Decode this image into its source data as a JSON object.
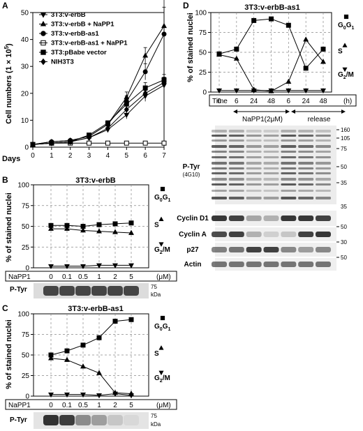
{
  "panels": {
    "A": {
      "letter": "A",
      "ylabel": "Cell numbers (1 × 10",
      "ylabel_sup": "5",
      "ylabel_end": ")",
      "xlabel": "Days",
      "legend": [
        {
          "label": "3T3:v-erbB",
          "marker": "tri-down",
          "fill": "#000000"
        },
        {
          "label": "3T3:v-erbB + NaPP1",
          "marker": "tri-up",
          "fill": "#000000"
        },
        {
          "label": "3T3:v-erbB-as1",
          "marker": "circle",
          "fill": "#000000"
        },
        {
          "label": "3T3:v-erbB-as1 + NaPP1",
          "marker": "square",
          "fill": "#ffffff"
        },
        {
          "label": "3T3:pBabe vector",
          "marker": "square",
          "fill": "#000000"
        },
        {
          "label": "NIH3T3",
          "marker": "diamond",
          "fill": "#000000"
        }
      ]
    },
    "B": {
      "letter": "B",
      "title": "3T3:v-erbB"
    },
    "C": {
      "letter": "C",
      "title": "3T3:v-erbB-as1"
    },
    "D": {
      "letter": "D",
      "title": "3T3:v-erbB-as1",
      "time_label": "Time",
      "time_unit": "(h)",
      "treat1": "NaPP1(2μM)",
      "treat2": "release",
      "ptyr": "P-Tyr",
      "ptyr_sub": "(4G10)",
      "blots": [
        "Cyclin D1",
        "Cyclin A",
        "p27",
        "Actin"
      ],
      "mw_ptyr": [
        "160",
        "105",
        "75",
        "50",
        "35"
      ],
      "mw_blots": [
        "35",
        "50",
        "30",
        "50"
      ]
    },
    "common": {
      "ylabel": "% of stained nuclei",
      "dose_label": "NaPP1",
      "dose_unit": "(μM)",
      "ptyr": "P-Tyr",
      "kda_75": "75",
      "kda": "kDa",
      "phase_g0g1": "G0G1",
      "phase_s": "S",
      "phase_g2m": "G2/M"
    }
  },
  "chart_data": [
    {
      "panel": "A",
      "type": "line",
      "xlabel": "Days",
      "ylabel": "Cell numbers (1 × 10^5)",
      "x": [
        0,
        1,
        2,
        3,
        4,
        5,
        6,
        7
      ],
      "xlim": [
        0,
        7
      ],
      "ylim": [
        0,
        50
      ],
      "yticks": [
        0,
        10,
        20,
        30,
        40,
        50
      ],
      "series": [
        {
          "name": "3T3:v-erbB",
          "marker": "tri-down",
          "values": [
            1,
            1.5,
            2,
            3.5,
            6.5,
            12,
            19,
            23
          ],
          "err": [
            0.3,
            0.4,
            0.4,
            0.5,
            0.8,
            1.5,
            2,
            2
          ]
        },
        {
          "name": "3T3:v-erbB + NaPP1",
          "marker": "tri-up",
          "values": [
            1,
            2,
            2.5,
            4,
            8.5,
            18.5,
            34,
            45
          ],
          "err": [
            0.3,
            0.4,
            0.5,
            0.5,
            1,
            2,
            3,
            11
          ]
        },
        {
          "name": "3T3:v-erbB-as1",
          "marker": "circle",
          "values": [
            1,
            2,
            2.5,
            4,
            8.5,
            17,
            28,
            42
          ],
          "err": [
            0.3,
            0.4,
            0.5,
            0.5,
            1,
            2,
            3,
            10
          ]
        },
        {
          "name": "3T3:v-erbB-as1 + NaPP1",
          "marker": "square-open",
          "values": [
            1,
            1.5,
            1.5,
            1.5,
            1.5,
            1.5,
            1.5,
            1.5
          ],
          "err": [
            0.3,
            0.3,
            0.3,
            0.3,
            0.3,
            0.3,
            0.3,
            0.3
          ]
        },
        {
          "name": "3T3:pBabe vector",
          "marker": "square",
          "values": [
            1,
            1.5,
            2,
            4.5,
            9,
            16,
            22,
            25
          ],
          "err": [
            0.3,
            0.4,
            0.4,
            0.5,
            0.8,
            1.5,
            2,
            2
          ]
        },
        {
          "name": "NIH3T3",
          "marker": "diamond",
          "values": [
            1,
            1.5,
            2,
            3.5,
            7,
            14,
            20,
            24
          ],
          "err": [
            0.3,
            0.4,
            0.4,
            0.5,
            0.8,
            1.5,
            2,
            2
          ]
        }
      ]
    },
    {
      "panel": "B",
      "type": "line",
      "title": "3T3:v-erbB",
      "ylabel": "% of stained nuclei",
      "categories": [
        "0",
        "0.1",
        "0.5",
        "1",
        "2",
        "5"
      ],
      "xunit": "(μM)",
      "ylim": [
        0,
        100
      ],
      "yticks": [
        0,
        25,
        50,
        75,
        100
      ],
      "series": [
        {
          "name": "G0G1",
          "marker": "square",
          "values": [
            51,
            51,
            50,
            52,
            53,
            54
          ]
        },
        {
          "name": "S",
          "marker": "tri-up",
          "values": [
            47,
            47,
            45,
            44,
            43,
            42
          ]
        },
        {
          "name": "G2/M",
          "marker": "tri-down",
          "values": [
            2,
            2,
            2,
            3,
            3,
            3
          ]
        }
      ]
    },
    {
      "panel": "C",
      "type": "line",
      "title": "3T3:v-erbB-as1",
      "ylabel": "% of stained nuclei",
      "categories": [
        "0",
        "0.1",
        "0.5",
        "1",
        "2",
        "5"
      ],
      "xunit": "(μM)",
      "ylim": [
        0,
        100
      ],
      "yticks": [
        0,
        25,
        50,
        75,
        100
      ],
      "series": [
        {
          "name": "G0G1",
          "marker": "square",
          "values": [
            50,
            55,
            62,
            71,
            91,
            93
          ]
        },
        {
          "name": "S",
          "marker": "tri-up",
          "values": [
            46,
            44,
            36,
            28,
            4,
            3
          ]
        },
        {
          "name": "G2/M",
          "marker": "tri-down",
          "values": [
            2,
            2,
            2,
            1,
            3,
            1
          ]
        }
      ]
    },
    {
      "panel": "D",
      "type": "line",
      "title": "3T3:v-erbB-as1",
      "ylabel": "% of stained nuclei",
      "categories": [
        "0",
        "6",
        "24",
        "48",
        "6",
        "24",
        "48"
      ],
      "groups": [
        "NaPP1(2μM)",
        "release"
      ],
      "xunit": "(h)",
      "ylim": [
        0,
        100
      ],
      "yticks": [
        0,
        25,
        50,
        75,
        100
      ],
      "series": [
        {
          "name": "G0G1",
          "marker": "square",
          "values": [
            48,
            54,
            90,
            92,
            84,
            30,
            54
          ]
        },
        {
          "name": "S",
          "marker": "tri-up",
          "values": [
            47,
            42,
            3,
            1,
            13,
            66,
            38
          ]
        },
        {
          "name": "G2/M",
          "marker": "tri-down",
          "values": [
            2,
            2,
            2,
            2,
            2,
            2,
            2
          ]
        }
      ]
    }
  ]
}
